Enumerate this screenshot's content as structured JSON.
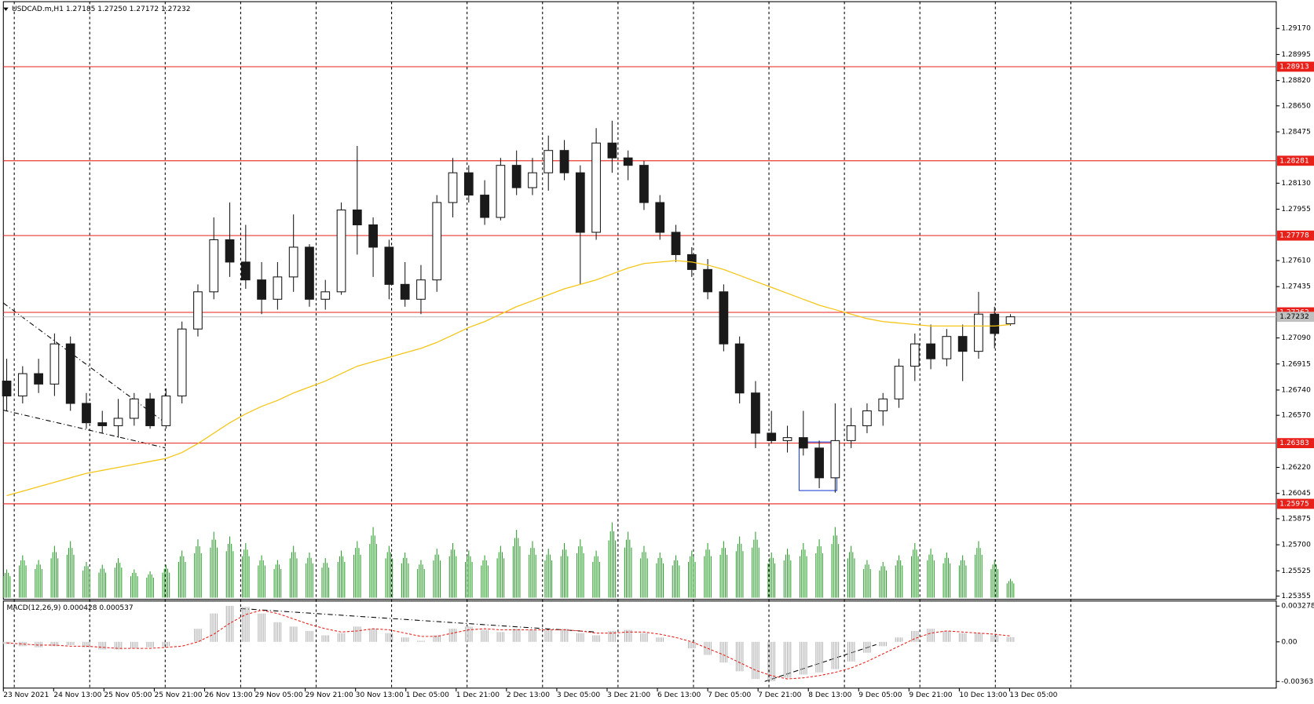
{
  "chart_data": [
    {
      "type": "candlestick",
      "title": "USDCAD.m,H1  1.27185 1.27250 1.27172 1.27232",
      "open": [
        1.268,
        1.267,
        1.2685,
        1.2678,
        1.2705,
        1.2665,
        1.2652,
        1.265,
        1.2655,
        1.2668,
        1.265,
        1.267,
        1.2715,
        1.274,
        1.2775,
        1.276,
        1.2748,
        1.2735,
        1.275,
        1.277,
        1.2735,
        1.274,
        1.2795,
        1.2785,
        1.277,
        1.2745,
        1.2735,
        1.2748,
        1.28,
        1.282,
        1.2805,
        1.279,
        1.2825,
        1.281,
        1.282,
        1.2835,
        1.282,
        1.278,
        1.284,
        1.283,
        1.2825,
        1.28,
        1.278,
        1.2765,
        1.2755,
        1.274,
        1.2705,
        1.2672,
        1.2645,
        1.264,
        1.2642,
        1.2635,
        1.2615,
        1.264,
        1.265,
        1.266,
        1.2668,
        1.269,
        1.2705,
        1.2695,
        1.271,
        1.27,
        1.2725,
        1.27185
      ],
      "high": [
        1.2695,
        1.269,
        1.2695,
        1.2712,
        1.271,
        1.2672,
        1.266,
        1.2668,
        1.2672,
        1.2672,
        1.2675,
        1.272,
        1.2745,
        1.279,
        1.28,
        1.2785,
        1.276,
        1.276,
        1.2792,
        1.2772,
        1.2748,
        1.28,
        1.2838,
        1.279,
        1.2775,
        1.276,
        1.2758,
        1.2805,
        1.283,
        1.2825,
        1.2815,
        1.283,
        1.2835,
        1.283,
        1.2845,
        1.2842,
        1.2825,
        1.285,
        1.2855,
        1.2835,
        1.2828,
        1.2805,
        1.2785,
        1.277,
        1.2762,
        1.2745,
        1.271,
        1.268,
        1.266,
        1.265,
        1.266,
        1.264,
        1.2665,
        1.2662,
        1.2665,
        1.2672,
        1.2695,
        1.2712,
        1.2718,
        1.2715,
        1.2718,
        1.274,
        1.273,
        1.2725
      ],
      "low": [
        1.266,
        1.2665,
        1.2672,
        1.267,
        1.266,
        1.2648,
        1.2645,
        1.2642,
        1.265,
        1.2648,
        1.2648,
        1.2665,
        1.271,
        1.2735,
        1.275,
        1.2742,
        1.2725,
        1.2728,
        1.274,
        1.273,
        1.2728,
        1.2738,
        1.2765,
        1.275,
        1.2735,
        1.273,
        1.2725,
        1.274,
        1.279,
        1.28,
        1.2785,
        1.2788,
        1.2805,
        1.2805,
        1.2808,
        1.2815,
        1.2745,
        1.2775,
        1.282,
        1.2815,
        1.2795,
        1.2775,
        1.276,
        1.275,
        1.2735,
        1.27,
        1.2665,
        1.2635,
        1.2638,
        1.2632,
        1.263,
        1.2608,
        1.2605,
        1.2635,
        1.2645,
        1.265,
        1.2662,
        1.268,
        1.2688,
        1.269,
        1.268,
        1.2695,
        1.2702,
        1.27172
      ],
      "close": [
        1.267,
        1.2685,
        1.2678,
        1.2705,
        1.2665,
        1.2652,
        1.265,
        1.2655,
        1.2668,
        1.265,
        1.267,
        1.2715,
        1.274,
        1.2775,
        1.276,
        1.2748,
        1.2735,
        1.275,
        1.277,
        1.2735,
        1.274,
        1.2795,
        1.2785,
        1.277,
        1.2745,
        1.2735,
        1.2748,
        1.28,
        1.282,
        1.2805,
        1.279,
        1.2825,
        1.281,
        1.282,
        1.2835,
        1.282,
        1.278,
        1.284,
        1.283,
        1.2825,
        1.28,
        1.278,
        1.2765,
        1.2755,
        1.274,
        1.2705,
        1.2672,
        1.2645,
        1.264,
        1.2642,
        1.2635,
        1.2615,
        1.264,
        1.265,
        1.266,
        1.2668,
        1.269,
        1.2705,
        1.2695,
        1.271,
        1.27,
        1.2725,
        1.2712,
        1.27232
      ],
      "up_color": "#1a1a1a",
      "down_color": "#1a1a1a",
      "ma_values": [
        1.2603,
        1.2606,
        1.2609,
        1.2612,
        1.2615,
        1.2618,
        1.262,
        1.2622,
        1.2624,
        1.2626,
        1.2628,
        1.2632,
        1.2638,
        1.2645,
        1.2652,
        1.2658,
        1.2663,
        1.2667,
        1.2672,
        1.2676,
        1.268,
        1.2685,
        1.269,
        1.2693,
        1.2696,
        1.2699,
        1.2702,
        1.2706,
        1.2711,
        1.2716,
        1.272,
        1.2725,
        1.273,
        1.2734,
        1.2738,
        1.2742,
        1.2745,
        1.2748,
        1.2752,
        1.2756,
        1.2759,
        1.276,
        1.2761,
        1.276,
        1.2758,
        1.2755,
        1.2751,
        1.2747,
        1.2743,
        1.2739,
        1.2735,
        1.2731,
        1.2728,
        1.2725,
        1.2722,
        1.272,
        1.2719,
        1.2718,
        1.2717,
        1.2717,
        1.2717,
        1.2717,
        1.2717,
        1.2718
      ],
      "ma_color": "#f5c518",
      "volume_values": [
        30,
        45,
        40,
        55,
        60,
        38,
        35,
        42,
        30,
        28,
        35,
        50,
        62,
        70,
        65,
        58,
        45,
        40,
        55,
        48,
        42,
        50,
        60,
        75,
        55,
        48,
        40,
        52,
        58,
        50,
        45,
        55,
        72,
        60,
        52,
        58,
        62,
        50,
        80,
        70,
        55,
        48,
        45,
        50,
        58,
        60,
        65,
        70,
        48,
        52,
        58,
        62,
        75,
        55,
        40,
        38,
        45,
        58,
        52,
        48,
        45,
        60,
        40,
        20
      ],
      "volume_color": "#2e9e2e",
      "ylim": [
        1.25333,
        1.2935
      ],
      "yticks": [
        {
          "value": 1.2917,
          "label": "1.29170"
        },
        1.28995,
        {
          "value": 1.2882,
          "label": "1.28820"
        },
        {
          "value": 1.2865,
          "label": "1.28650"
        },
        1.28475,
        {
          "value": 1.2813,
          "label": "1.28130"
        },
        1.27955,
        {
          "value": 1.2761,
          "label": "1.27610"
        },
        1.27435,
        {
          "value": 1.2709,
          "label": "1.27090"
        },
        1.26915,
        {
          "value": 1.2674,
          "label": "1.26740"
        },
        {
          "value": 1.2657,
          "label": "1.26570"
        },
        {
          "value": 1.2622,
          "label": "1.26220"
        },
        1.26045,
        1.25875,
        {
          "value": 1.257,
          "label": "1.25700"
        },
        1.25525,
        1.25355
      ],
      "levels": [
        1.28913,
        1.28281,
        1.27778,
        1.27262,
        1.26383,
        1.25975
      ],
      "level_color": "#e8201a",
      "current_price": 1.27232,
      "x_labels": [
        "23 Nov 2021",
        "24 Nov 13:00",
        "25 Nov 05:00",
        "25 Nov 21:00",
        "26 Nov 13:00",
        "29 Nov 05:00",
        "29 Nov 21:00",
        "30 Nov 13:00",
        "1 Dec 05:00",
        "1 Dec 21:00",
        "2 Dec 13:00",
        "3 Dec 05:00",
        "3 Dec 21:00",
        "6 Dec 13:00",
        "7 Dec 05:00",
        "7 Dec 21:00",
        "8 Dec 13:00",
        "9 Dec 05:00",
        "9 Dec 21:00",
        "10 Dec 13:00",
        "13 Dec 05:00"
      ],
      "grid": true
    },
    {
      "type": "macd",
      "title": "MACD(12,26,9) 0.000428 0.000537",
      "values": [
        -0.0002,
        -0.0004,
        -0.0005,
        -0.0004,
        -0.0003,
        -0.0005,
        -0.0007,
        -0.0007,
        -0.0006,
        -0.0005,
        -0.0004,
        0.0,
        0.0012,
        0.0026,
        0.0033,
        0.0032,
        0.0026,
        0.0018,
        0.0014,
        0.001,
        0.0006,
        0.0008,
        0.0014,
        0.0012,
        0.0008,
        0.0004,
        0.0001,
        0.0006,
        0.0012,
        0.0014,
        0.0011,
        0.0009,
        0.0012,
        0.0011,
        0.0011,
        0.0012,
        0.0008,
        0.0006,
        0.001,
        0.0011,
        0.0008,
        0.0004,
        0.0,
        -0.0006,
        -0.0012,
        -0.0019,
        -0.0027,
        -0.0034,
        -0.0036,
        -0.0033,
        -0.003,
        -0.0028,
        -0.0025,
        -0.0018,
        -0.001,
        -0.0004,
        0.0004,
        0.001,
        0.0012,
        0.001,
        0.0008,
        0.0008,
        0.0006,
        0.000428
      ],
      "color": "#b4b4b4",
      "signal": [
        -0.0001,
        -0.0002,
        -0.0003,
        -0.0003,
        -0.0004,
        -0.0004,
        -0.0005,
        -0.0006,
        -0.0006,
        -0.0006,
        -0.0005,
        -0.0004,
        0.0,
        0.0007,
        0.0017,
        0.0025,
        0.0029,
        0.0026,
        0.0021,
        0.0016,
        0.0012,
        0.0009,
        0.001,
        0.0012,
        0.0011,
        0.0008,
        0.0005,
        0.0005,
        0.0008,
        0.0011,
        0.0012,
        0.0011,
        0.0011,
        0.0011,
        0.0011,
        0.0011,
        0.001,
        0.0008,
        0.0008,
        0.0009,
        0.0009,
        0.0007,
        0.0004,
        0.0,
        -0.0006,
        -0.0012,
        -0.0019,
        -0.0026,
        -0.0031,
        -0.0034,
        -0.0033,
        -0.0031,
        -0.0028,
        -0.0024,
        -0.0018,
        -0.0011,
        -0.0004,
        0.0003,
        0.0008,
        0.001,
        0.0009,
        0.0008,
        0.0007,
        0.000537
      ],
      "signal_color": "#e8201a",
      "ylim": [
        -0.00424,
        0.00374
      ],
      "yticks": [
        0.003278,
        {
          "value": 0,
          "label": "0.00"
        },
        -0.003631
      ]
    }
  ]
}
